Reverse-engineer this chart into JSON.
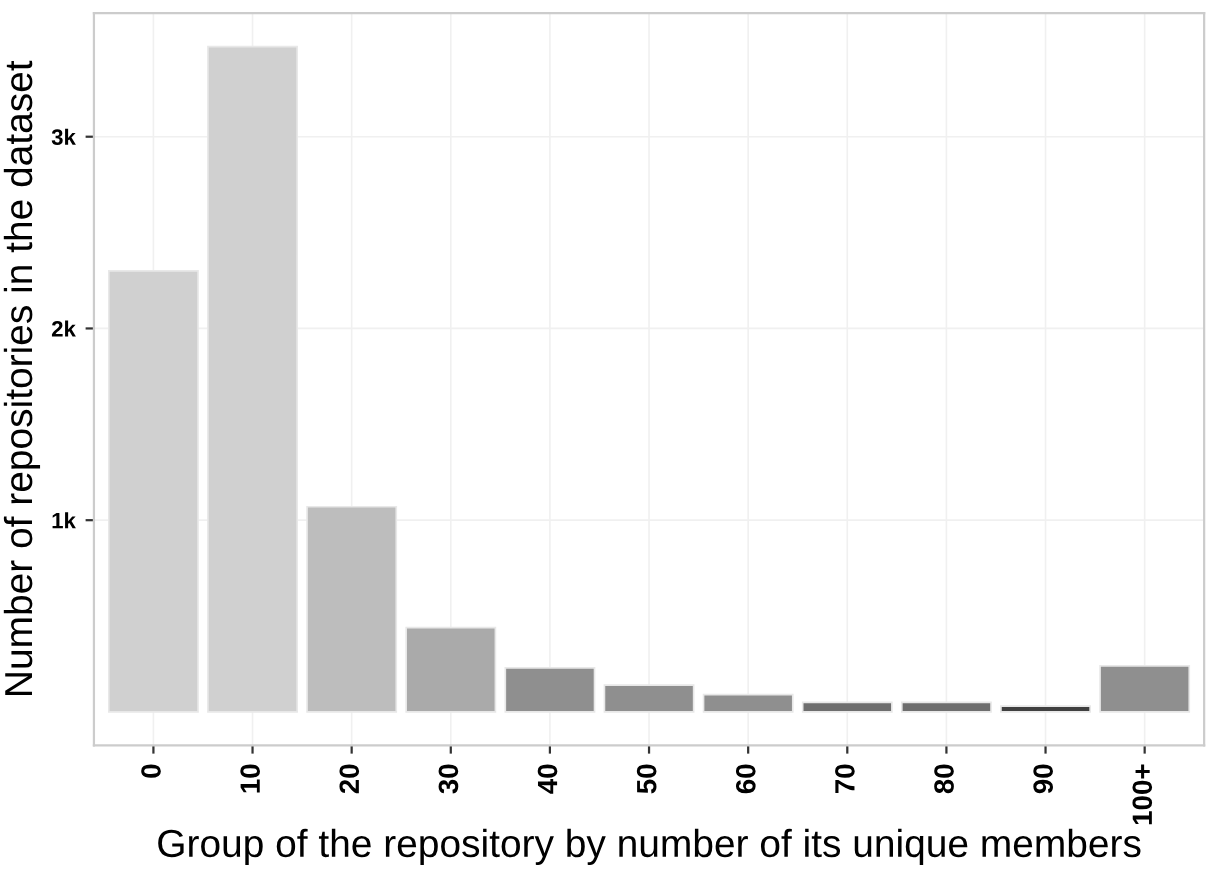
{
  "chart_data": {
    "type": "bar",
    "xlabel": "Group of the repository by number of its unique members",
    "ylabel": "Number of repositories in the dataset",
    "categories": [
      "0",
      "10",
      "20",
      "30",
      "40",
      "50",
      "60",
      "70",
      "80",
      "90",
      "100+"
    ],
    "values": [
      2300,
      3470,
      1070,
      440,
      230,
      140,
      90,
      50,
      50,
      30,
      240
    ],
    "colors": [
      "#d0d0d0",
      "#d0d0d0",
      "#bdbdbd",
      "#aaaaaa",
      "#8f8f8f",
      "#8f8f8f",
      "#8f8f8f",
      "#6e6e6e",
      "#6e6e6e",
      "#404040",
      "#8f8f8f"
    ],
    "ylim": [
      -174,
      3644
    ],
    "yticks": [
      {
        "value": 1000,
        "label": "1k"
      },
      {
        "value": 2000,
        "label": "2k"
      },
      {
        "value": 3000,
        "label": "3k"
      }
    ],
    "grid": true
  }
}
